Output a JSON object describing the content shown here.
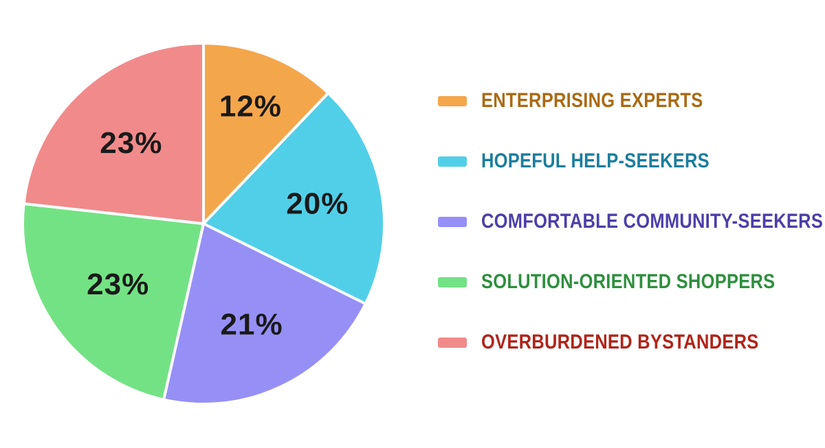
{
  "chart_data": {
    "type": "pie",
    "title": "",
    "legend_position": "right",
    "direction": "clockwise",
    "start_angle_deg": 0,
    "slice_label_color": "#1a1a1a",
    "background_color": "#ffffff",
    "separator_color": "#ffffff",
    "segments": [
      {
        "label": "ENTERPRISING EXPERTS",
        "value": 12,
        "display": "12%",
        "color": "#F4A64B",
        "text_color": "#A86B14"
      },
      {
        "label": "HOPEFUL HELP-SEEKERS",
        "value": 20,
        "display": "20%",
        "color": "#52CFE8",
        "text_color": "#1C7D9C"
      },
      {
        "label": "COMFORTABLE COMMUNITY-SEEKERS",
        "value": 21,
        "display": "21%",
        "color": "#9690F6",
        "text_color": "#4C3FA8"
      },
      {
        "label": "SOLUTION-ORIENTED SHOPPERS",
        "value": 23,
        "display": "23%",
        "color": "#73E284",
        "text_color": "#2E8F3E"
      },
      {
        "label": "OVERBURDENED BYSTANDERS",
        "value": 23,
        "display": "23%",
        "color": "#F18A8B",
        "text_color": "#B0241A"
      }
    ],
    "label_radius_factors": [
      0.7,
      0.64,
      0.62,
      0.58,
      0.6
    ]
  }
}
